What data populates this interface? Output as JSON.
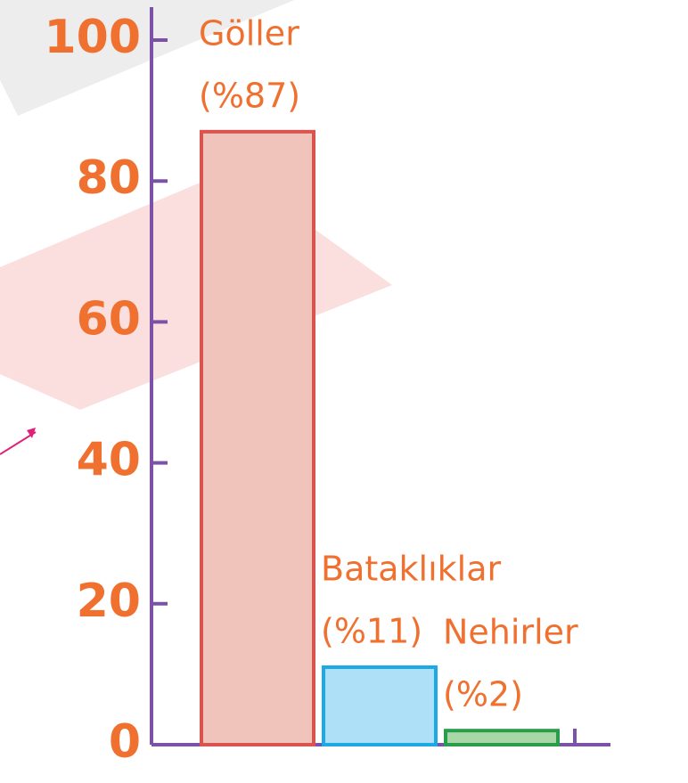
{
  "chart_data": {
    "type": "bar",
    "categories": [
      "Göller",
      "Bataklıklar",
      "Nehirler"
    ],
    "values": [
      87,
      11,
      2
    ],
    "value_labels": [
      "(%87)",
      "(%11)",
      "(%2)"
    ],
    "colors": [
      "#f0c4bb",
      "#aee0f8",
      "#a8d8a8"
    ],
    "edgecolors": [
      "#d9534f",
      "#1ca9e6",
      "#2a9d4a"
    ],
    "ylim": [
      0,
      100
    ],
    "yticks": [
      0,
      20,
      40,
      60,
      80,
      100
    ],
    "grid": false
  }
}
